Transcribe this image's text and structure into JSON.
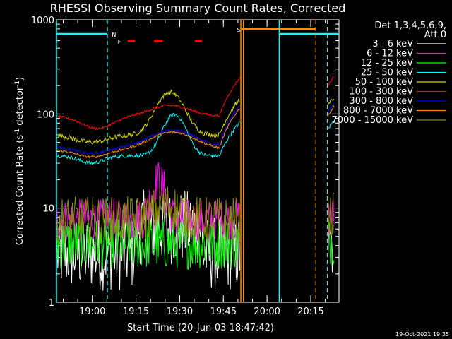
{
  "chart_data": {
    "type": "line",
    "title": "RHESSI Observing Summary Count Rates, Corrected",
    "xlabel": "Start Time (20-Jun-03 18:47:42)",
    "ylabel_main": "Corrected Count Rate (s",
    "ylabel_sup1": "-1",
    "ylabel_mid": " detector",
    "ylabel_sup2": "-1",
    "ylabel_end": ")",
    "yscale": "log",
    "ylim": [
      1,
      1000
    ],
    "yticks": [
      1,
      10,
      100,
      1000
    ],
    "ytick_labels": [
      "1",
      "10",
      "100",
      "1000"
    ],
    "xlim_minutes": [
      0,
      97
    ],
    "xticks_minutes": [
      12.3,
      27.3,
      42.3,
      57.3,
      72.3,
      87.3
    ],
    "xtick_labels": [
      "19:00",
      "19:15",
      "19:30",
      "19:45",
      "20:00",
      "20:15"
    ],
    "legend_header": [
      "Det 1,3,4,5,6,9,",
      "Att 0"
    ],
    "series": [
      {
        "name": "3 - 6 keV",
        "color": "#ffffff"
      },
      {
        "name": "6 - 12 keV",
        "color": "#ff00ff"
      },
      {
        "name": "12 - 25 keV",
        "color": "#00ff00"
      },
      {
        "name": "25 - 50 keV",
        "color": "#00ffff"
      },
      {
        "name": "50 - 100 keV",
        "color": "#d4d400"
      },
      {
        "name": "100 - 300 keV",
        "color": "#ff0000"
      },
      {
        "name": "300 - 800 keV",
        "color": "#0000ff"
      },
      {
        "name": "800 - 7000 keV",
        "color": "#ff8c00"
      },
      {
        "name": "7000 - 15000 keV",
        "color": "#8b8b00"
      }
    ],
    "flags": {
      "night_label": "N",
      "flare_label": "F",
      "saa_label": "S"
    },
    "footer_date": "19-Oct-2021 19:35"
  }
}
